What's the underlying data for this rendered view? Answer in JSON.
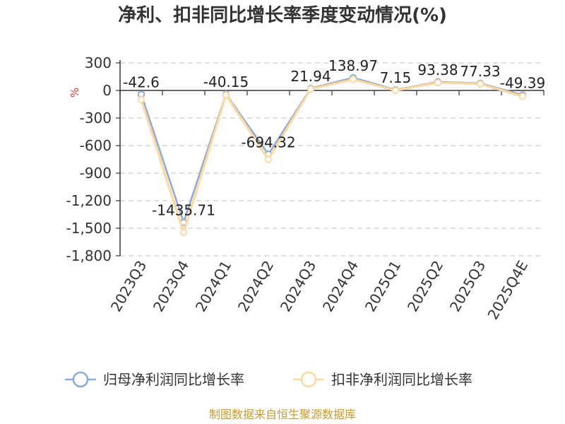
{
  "chart_data": {
    "type": "line",
    "title": "净利、扣非同比增长率季度变动情况(%)",
    "unit": "%",
    "categories": [
      "2023Q3",
      "2023Q4",
      "2024Q1",
      "2024Q2",
      "2024Q3",
      "2024Q4",
      "2025Q1",
      "2025Q2",
      "2025Q3",
      "2025Q4E"
    ],
    "y_ticks": [
      "300",
      "0",
      "-300",
      "-600",
      "-900",
      "-1,200",
      "-1,500",
      "-1,800"
    ],
    "ylim": [
      -1800,
      300
    ],
    "grid": true,
    "legend_position": "bottom",
    "series": [
      {
        "name": "归母净利润同比增长率",
        "color": "#8eaadb",
        "values": [
          -42.6,
          -1435.71,
          -40.15,
          -694.32,
          21.94,
          138.97,
          7.15,
          93.38,
          77.33,
          -49.39
        ],
        "labels": [
          "-42.6",
          "-1435.71",
          "-40.15",
          "-694.32",
          "21.94",
          "138.97",
          "7.15",
          "93.38",
          "77.33",
          "-49.39"
        ]
      },
      {
        "name": "扣非净利润同比增长率",
        "color": "#fdd9a0",
        "values": [
          -100,
          -1545,
          -50,
          -750,
          15,
          120,
          0,
          85,
          70,
          -65
        ]
      }
    ]
  },
  "source": "制图数据来自恒生聚源数据库"
}
